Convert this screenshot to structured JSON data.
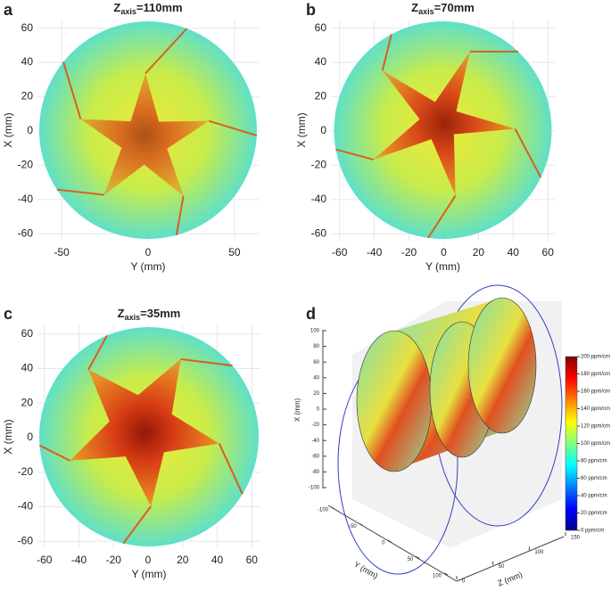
{
  "chart_data": [
    {
      "type": "heatmap",
      "panel_label": "a",
      "title": {
        "main": "Z",
        "sub": "axis",
        "rest": "=110mm"
      },
      "xlabel": "Y (mm)",
      "ylabel": "X (mm)",
      "xlim": [
        -64,
        64
      ],
      "ylim": [
        -64,
        65
      ],
      "xticks": [
        -50,
        0,
        50
      ],
      "yticks": [
        -60,
        -40,
        -20,
        0,
        20,
        40,
        60
      ],
      "grid": true
    },
    {
      "type": "heatmap",
      "panel_label": "b",
      "title": {
        "main": "Z",
        "sub": "axis",
        "rest": "=70mm"
      },
      "xlabel": "Y (mm)",
      "ylabel": "X (mm)",
      "xlim": [
        -65,
        64
      ],
      "ylim": [
        -64,
        65
      ],
      "xticks": [
        -60,
        -40,
        -20,
        0,
        20,
        40,
        60
      ],
      "yticks": [
        -60,
        -40,
        -20,
        0,
        20,
        40,
        60
      ],
      "grid": true
    },
    {
      "type": "heatmap",
      "panel_label": "c",
      "title": {
        "main": "Z",
        "sub": "axis",
        "rest": "=35mm"
      },
      "xlabel": "Y (mm)",
      "ylabel": "X (mm)",
      "xlim": [
        -64,
        65
      ],
      "ylim": [
        -64,
        65
      ],
      "xticks": [
        -60,
        -40,
        -20,
        0,
        20,
        40,
        60
      ],
      "yticks": [
        -60,
        -40,
        -20,
        0,
        20,
        40,
        60
      ],
      "grid": true
    },
    {
      "type": "slices3d",
      "panel_label": "d",
      "xlabel": "X (mm)",
      "ylabel": "Y (mm)",
      "zlabel": "Z (mm)",
      "xticks": [
        100,
        80,
        60,
        40,
        20,
        0,
        -20,
        -40,
        -60,
        -80,
        -100
      ],
      "yticks": [
        -100,
        -50,
        0,
        50,
        100
      ],
      "zticks": [
        0,
        50,
        100,
        150
      ],
      "clim": [
        0,
        200
      ],
      "colormap": "jet",
      "cticks": [
        {
          "value": 0,
          "label": "0 ppm/cm"
        },
        {
          "value": 20,
          "label": "20 ppm/cm"
        },
        {
          "value": 40,
          "label": "40 ppm/cm"
        },
        {
          "value": 60,
          "label": "60 ppm/cm"
        },
        {
          "value": 80,
          "label": "80 ppm/cm"
        },
        {
          "value": 100,
          "label": "100 ppm/cm"
        },
        {
          "value": 120,
          "label": "120 ppm/cm"
        },
        {
          "value": 140,
          "label": "140 ppm/cm"
        },
        {
          "value": 160,
          "label": "160 ppm/cm"
        },
        {
          "value": 180,
          "label": "180 ppm/cm"
        },
        {
          "value": 200,
          "label": "200 ppm/cm"
        }
      ]
    }
  ]
}
